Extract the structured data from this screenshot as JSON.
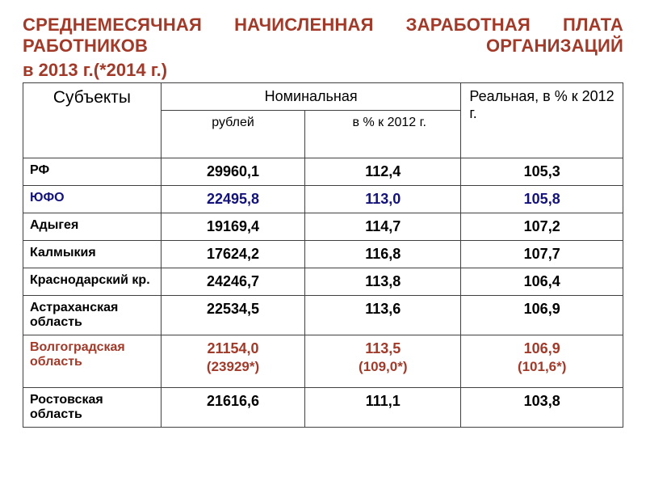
{
  "title_colors": {
    "heading": "#a23a2a",
    "blue": "#12127a"
  },
  "heading_line1": "СРЕДНЕМЕСЯЧНАЯ НАЧИСЛЕННАЯ ЗАРАБОТНАЯ ПЛАТА РАБОТНИКОВ ОРГАНИЗАЦИЙ",
  "heading_line2": "в 2013 г.(*2014 г.)",
  "header": {
    "subjects": "Субъекты",
    "nominal": "Номинальная",
    "real": "Реальная, в % к 2012 г.",
    "sub_rub": "рублей",
    "sub_pct": "в % к 2012 г."
  },
  "rows": [
    {
      "name": "РФ",
      "rub": "29960,1",
      "pct": "112,4",
      "real": "105,3",
      "style": "plain"
    },
    {
      "name": "ЮФО",
      "rub": "22495,8",
      "pct": "113,0",
      "real": "105,8",
      "style": "blue"
    },
    {
      "name": "Адыгея",
      "rub": "19169,4",
      "pct": "114,7",
      "real": "107,2",
      "style": "plain"
    },
    {
      "name": "Калмыкия",
      "rub": "17624,2",
      "pct": "116,8",
      "real": "107,7",
      "style": "plain"
    },
    {
      "name": "Краснодарский кр.",
      "rub": "24246,7",
      "pct": "113,8",
      "real": "106,4",
      "style": "plain"
    },
    {
      "name": "Астраханская область",
      "rub": "22534,5",
      "pct": "113,6",
      "real": "106,9",
      "style": "plain"
    },
    {
      "name": "Волгоградская область",
      "rub": "21154,0",
      "pct": "113,5",
      "real": "106,9",
      "style": "red",
      "rub2": "(23929*)",
      "pct2": "(109,0*)",
      "real2": "(101,6*)"
    },
    {
      "name": "Ростовская область",
      "rub": "21616,6",
      "pct": "111,1",
      "real": "103,8",
      "style": "plain"
    }
  ]
}
